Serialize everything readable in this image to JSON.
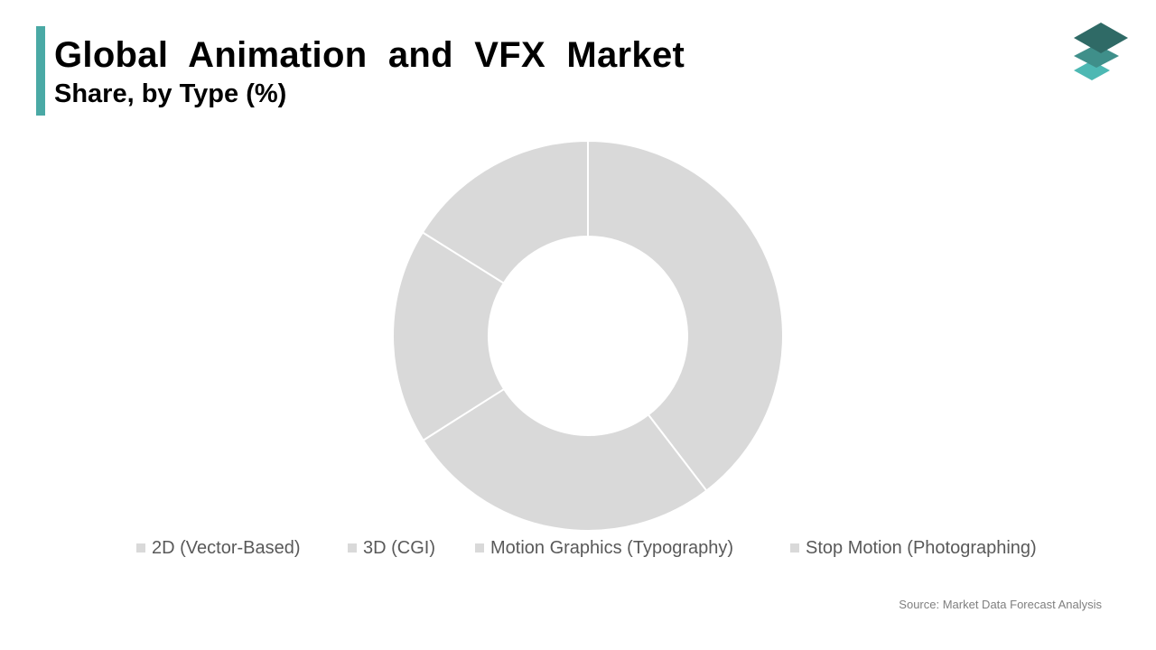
{
  "header": {
    "title": "Global Animation and VFX Market",
    "subtitle": "Share, by Type (%)",
    "accent_color": "#4aa9a5"
  },
  "logo": {
    "icon": "stacked-layers-logo",
    "colors": [
      "#2f6a66",
      "#3f8f8a",
      "#4db8b3"
    ]
  },
  "chart_data": {
    "type": "pie",
    "donut": true,
    "title": "",
    "slice_color": "#d9d9d9",
    "separator_color": "#ffffff",
    "legend_position": "bottom",
    "categories": [
      "2D (Vector-Based)",
      "3D (CGI)",
      "Motion Graphics (Typography)",
      "Stop Motion (Photographing)"
    ],
    "values": [
      39.6,
      26.4,
      17.9,
      16.1
    ]
  },
  "source": "Source: Market Data Forecast Analysis"
}
